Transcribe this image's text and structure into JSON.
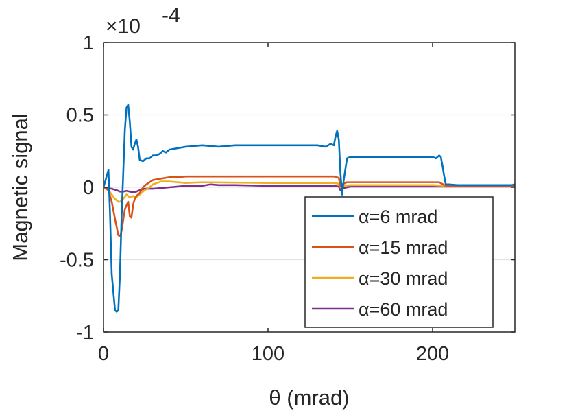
{
  "chart_data": {
    "type": "line",
    "title": "",
    "xlabel": "θ (mrad)",
    "ylabel": "Magnetic signal",
    "y_multiplier": "×10",
    "y_multiplier_exponent": "-4",
    "xlim": [
      0,
      250
    ],
    "ylim": [
      -1,
      1
    ],
    "xticks": [
      0,
      100,
      200
    ],
    "xtick_labels": [
      "0",
      "100",
      "200"
    ],
    "yticks": [
      -1,
      -0.5,
      0,
      0.5,
      1
    ],
    "ytick_labels": [
      "-1",
      "-0.5",
      "0",
      "0.5",
      "1"
    ],
    "grid": "horizontal",
    "legend_position": "lower-right",
    "series": [
      {
        "name": "α=6 mrad",
        "color": "#0072BD",
        "x": [
          0,
          2,
          3,
          4,
          5,
          7,
          8,
          9,
          10,
          11,
          12,
          13,
          14,
          15,
          16,
          17,
          18,
          19,
          20,
          21,
          22,
          24,
          26,
          28,
          30,
          32,
          34,
          36,
          38,
          40,
          45,
          50,
          60,
          70,
          80,
          100,
          120,
          130,
          135,
          138,
          140,
          141,
          142,
          143,
          144,
          145,
          146,
          148,
          150,
          160,
          180,
          195,
          200,
          202,
          204,
          205,
          206,
          207,
          208,
          210,
          215,
          230,
          248,
          250
        ],
        "values": [
          0,
          0.08,
          0.12,
          -0.2,
          -0.6,
          -0.85,
          -0.86,
          -0.85,
          -0.6,
          -0.2,
          0.1,
          0.4,
          0.55,
          0.57,
          0.45,
          0.28,
          0.26,
          0.3,
          0.33,
          0.28,
          0.19,
          0.18,
          0.2,
          0.2,
          0.22,
          0.22,
          0.23,
          0.25,
          0.24,
          0.26,
          0.27,
          0.28,
          0.29,
          0.28,
          0.29,
          0.29,
          0.29,
          0.29,
          0.28,
          0.3,
          0.29,
          0.35,
          0.39,
          0.33,
          0.1,
          -0.05,
          0.05,
          0.2,
          0.21,
          0.21,
          0.21,
          0.21,
          0.21,
          0.2,
          0.22,
          0.21,
          0.15,
          0.08,
          0.02,
          0.02,
          0.015,
          0.015,
          0.015,
          0.02
        ]
      },
      {
        "name": "α=15 mrad",
        "color": "#D95319",
        "x": [
          0,
          3,
          5,
          7,
          9,
          10,
          11,
          13,
          15,
          16,
          17,
          18,
          19,
          20,
          22,
          24,
          26,
          30,
          35,
          40,
          45,
          50,
          100,
          140,
          143,
          144,
          145,
          148,
          200,
          204,
          208,
          250
        ],
        "values": [
          0,
          -0.02,
          -0.1,
          -0.22,
          -0.33,
          -0.34,
          -0.3,
          -0.15,
          -0.1,
          -0.2,
          -0.21,
          -0.12,
          -0.08,
          -0.06,
          -0.04,
          0.0,
          0.02,
          0.05,
          0.06,
          0.07,
          0.07,
          0.075,
          0.075,
          0.075,
          0.065,
          0.01,
          0.02,
          0.035,
          0.035,
          0.035,
          0.01,
          0.01
        ]
      },
      {
        "name": "α=30 mrad",
        "color": "#EDB120",
        "x": [
          0,
          3,
          5,
          7,
          9,
          10,
          12,
          14,
          16,
          18,
          20,
          22,
          25,
          28,
          30,
          35,
          40,
          50,
          60,
          100,
          140,
          143,
          144,
          146,
          150,
          200,
          210,
          250
        ],
        "values": [
          0,
          -0.02,
          -0.05,
          -0.08,
          -0.1,
          -0.1,
          -0.08,
          -0.05,
          -0.07,
          -0.06,
          -0.07,
          -0.05,
          -0.02,
          0.0,
          0.02,
          0.04,
          0.04,
          0.03,
          0.035,
          0.03,
          0.03,
          0.025,
          0.0,
          0.01,
          0.015,
          0.015,
          0.01,
          0.01
        ]
      },
      {
        "name": "α=60 mrad",
        "color": "#7E2F8E",
        "x": [
          0,
          5,
          8,
          10,
          12,
          14,
          16,
          18,
          20,
          22,
          25,
          28,
          30,
          35,
          40,
          45,
          50,
          60,
          65,
          70,
          80,
          100,
          140,
          143,
          144,
          146,
          150,
          200,
          250
        ],
        "values": [
          0,
          -0.01,
          -0.02,
          -0.03,
          -0.03,
          -0.025,
          -0.03,
          -0.035,
          -0.03,
          -0.02,
          -0.01,
          -0.01,
          -0.01,
          -0.005,
          0.0,
          0.005,
          0.01,
          0.01,
          0.02,
          0.015,
          0.015,
          0.01,
          0.01,
          0.005,
          -0.02,
          -0.005,
          0.005,
          0.005,
          0.005
        ]
      }
    ]
  }
}
